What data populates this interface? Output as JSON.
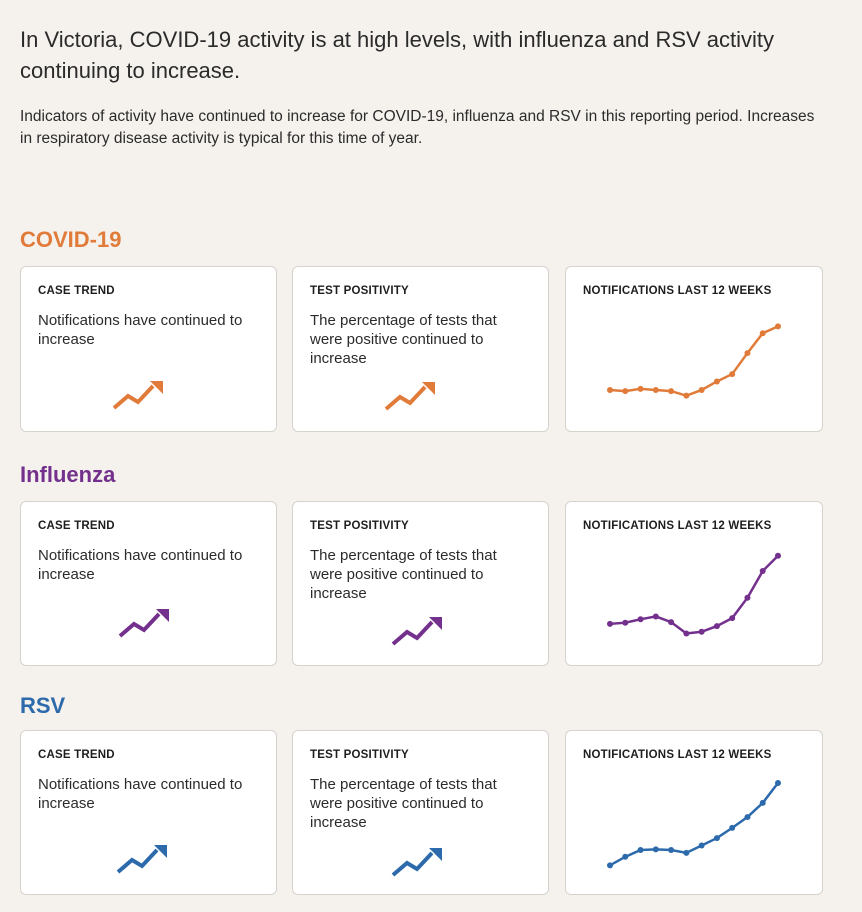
{
  "headline": "In Victoria, COVID-19 activity is at high levels, with influenza and RSV activity continuing to increase.",
  "intro": "Indicators of activity have continued to increase for COVID-19, influenza and RSV in this reporting period. Increases in respiratory disease activity is typical for this time of year.",
  "sections": [
    {
      "title": "COVID-19",
      "color": "#e07b39",
      "case_trend": {
        "label": "CASE TREND",
        "text": "Notifications have continued to increase",
        "icon": "trend-up-icon"
      },
      "test_positivity": {
        "label": "TEST POSITIVITY",
        "text": "The percentage of tests that were positive continued to increase",
        "icon": "trend-up-icon"
      },
      "notifications": {
        "label": "NOTIFICATIONS LAST 12 WEEKS",
        "values": [
          0.3,
          0.28,
          0.32,
          0.3,
          0.28,
          0.2,
          0.3,
          0.45,
          0.58,
          0.95,
          1.3,
          1.42
        ]
      }
    },
    {
      "title": "Influenza",
      "color": "#73308c",
      "case_trend": {
        "label": "CASE TREND",
        "text": "Notifications have continued to increase",
        "icon": "trend-up-icon"
      },
      "test_positivity": {
        "label": "TEST POSITIVITY",
        "text": "The percentage of tests that were positive continued to increase",
        "icon": "trend-up-icon"
      },
      "notifications": {
        "label": "NOTIFICATIONS LAST 12 WEEKS",
        "values": [
          0.32,
          0.34,
          0.4,
          0.45,
          0.35,
          0.15,
          0.18,
          0.28,
          0.42,
          0.78,
          1.25,
          1.52
        ]
      }
    },
    {
      "title": "RSV",
      "color": "#2c6aab",
      "case_trend": {
        "label": "CASE TREND",
        "text": "Notifications have continued to increase",
        "icon": "trend-up-icon"
      },
      "test_positivity": {
        "label": "TEST POSITIVITY",
        "text": "The percentage of tests that were positive continued to increase",
        "icon": "trend-up-icon"
      },
      "notifications": {
        "label": "NOTIFICATIONS LAST 12 WEEKS",
        "values": [
          0.1,
          0.25,
          0.37,
          0.38,
          0.37,
          0.32,
          0.45,
          0.58,
          0.76,
          0.95,
          1.2,
          1.55
        ]
      }
    }
  ]
}
